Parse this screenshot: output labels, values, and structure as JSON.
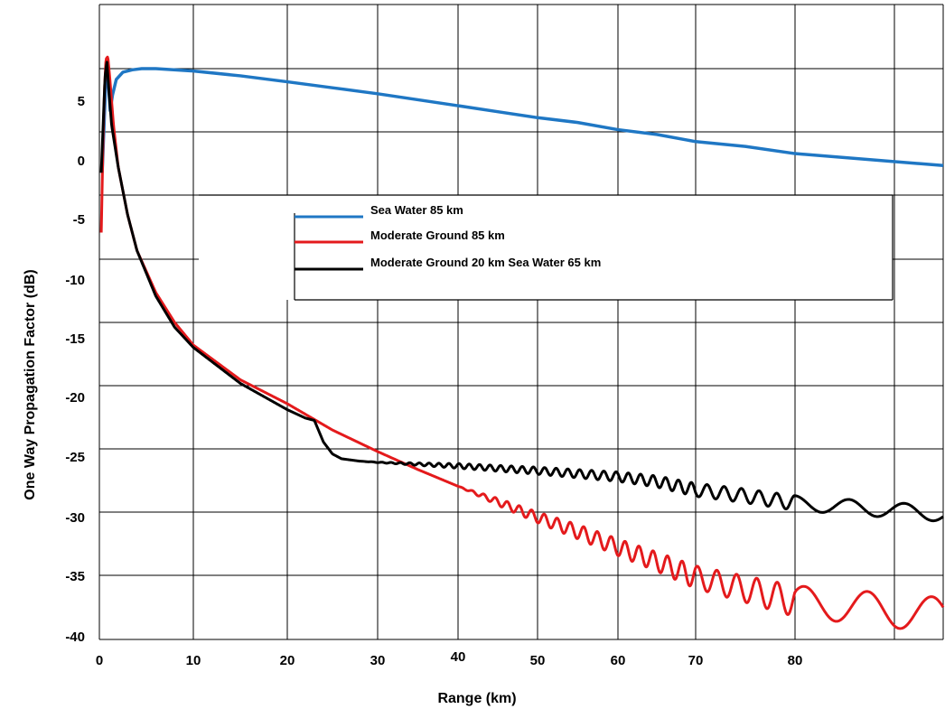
{
  "chart_data": {
    "type": "line",
    "xlabel": "Range (km)",
    "ylabel": "One Way Propagation Factor (dB)",
    "xlim": [
      0,
      85
    ],
    "ylim": [
      -41,
      12
    ],
    "x_ticks": [
      0,
      10,
      20,
      30,
      40,
      50,
      60,
      70,
      80
    ],
    "y_ticks": [
      5,
      0,
      -5,
      -10,
      -15,
      -20,
      -25,
      -30,
      -35,
      -40
    ],
    "grid": true,
    "legend_placement": "center",
    "series": [
      {
        "name": "Sea Water 85 km",
        "color": "#1f77c4",
        "points": [
          [
            0.3,
            -1
          ],
          [
            0.5,
            3
          ],
          [
            0.7,
            7
          ],
          [
            0.9,
            8
          ],
          [
            1.0,
            6
          ],
          [
            1.15,
            4.2
          ],
          [
            1.4,
            5.5
          ],
          [
            1.8,
            6.8
          ],
          [
            2.5,
            7.4
          ],
          [
            3.5,
            7.6
          ],
          [
            4.5,
            7.7
          ],
          [
            6,
            7.7
          ],
          [
            10,
            7.5
          ],
          [
            15,
            7.1
          ],
          [
            20,
            6.6
          ],
          [
            25,
            6.1
          ],
          [
            30,
            5.6
          ],
          [
            35,
            5.1
          ],
          [
            40,
            4.6
          ],
          [
            45,
            4.1
          ],
          [
            50,
            3.6
          ],
          [
            55,
            3.2
          ],
          [
            60,
            2.6
          ],
          [
            65,
            2.2
          ],
          [
            70,
            1.6
          ],
          [
            75,
            1.2
          ],
          [
            80,
            0.6
          ],
          [
            85,
            -0.4
          ]
        ]
      },
      {
        "name": "Moderate Ground 85 km",
        "color": "#e41a1c",
        "base": [
          [
            0.2,
            -6
          ],
          [
            0.4,
            2
          ],
          [
            0.55,
            6
          ],
          [
            0.7,
            8.5
          ],
          [
            0.9,
            8.7
          ],
          [
            1.1,
            7
          ],
          [
            1.5,
            3
          ],
          [
            2,
            -0.5
          ],
          [
            3,
            -4.5
          ],
          [
            4,
            -7.5
          ],
          [
            6,
            -11
          ],
          [
            8,
            -13.5
          ],
          [
            10,
            -15.4
          ],
          [
            15,
            -18.3
          ],
          [
            20,
            -20.3
          ],
          [
            25,
            -22.5
          ],
          [
            30,
            -24.3
          ],
          [
            35,
            -25.8
          ],
          [
            40,
            -27.2
          ],
          [
            45,
            -28.5
          ],
          [
            50,
            -29.8
          ],
          [
            55,
            -31
          ],
          [
            60,
            -32.3
          ],
          [
            65,
            -33.5
          ],
          [
            70,
            -34.8
          ],
          [
            75,
            -35.8
          ],
          [
            80,
            -36.8
          ],
          [
            85,
            -38
          ]
        ],
        "oscillation": [
          [
            40,
            0
          ],
          [
            45,
            0.3
          ],
          [
            55,
            0.6
          ],
          [
            65,
            0.8
          ],
          [
            75,
            1.1
          ],
          [
            85,
            1.5
          ]
        ],
        "osc_period": [
          [
            40,
            1.4
          ],
          [
            85,
            2.2
          ]
        ]
      },
      {
        "name": "Moderate Ground 20 km Sea Water 65 km",
        "color": "#000000",
        "base": [
          [
            0.2,
            -1
          ],
          [
            0.4,
            3
          ],
          [
            0.6,
            7
          ],
          [
            0.8,
            8.3
          ],
          [
            1.0,
            6
          ],
          [
            1.3,
            3
          ],
          [
            2,
            -0.5
          ],
          [
            3,
            -4.5
          ],
          [
            4,
            -7.5
          ],
          [
            6,
            -11.3
          ],
          [
            8,
            -13.9
          ],
          [
            10,
            -15.6
          ],
          [
            15,
            -18.6
          ],
          [
            20,
            -20.8
          ],
          [
            22,
            -21.5
          ],
          [
            23,
            -21.7
          ],
          [
            24,
            -23.5
          ],
          [
            25,
            -24.5
          ],
          [
            26,
            -24.9
          ],
          [
            28,
            -25.1
          ],
          [
            30,
            -25.2
          ],
          [
            40,
            -25.5
          ],
          [
            50,
            -25.9
          ],
          [
            60,
            -26.4
          ],
          [
            65,
            -26.8
          ],
          [
            70,
            -27.5
          ],
          [
            75,
            -28
          ],
          [
            80,
            -28.6
          ],
          [
            85,
            -29.5
          ]
        ],
        "oscillation": [
          [
            28,
            0
          ],
          [
            32,
            0.05
          ],
          [
            40,
            0.2
          ],
          [
            50,
            0.3
          ],
          [
            60,
            0.4
          ],
          [
            70,
            0.55
          ],
          [
            85,
            0.65
          ]
        ],
        "osc_period": [
          [
            28,
            1.1
          ],
          [
            85,
            1.9
          ]
        ]
      }
    ]
  }
}
